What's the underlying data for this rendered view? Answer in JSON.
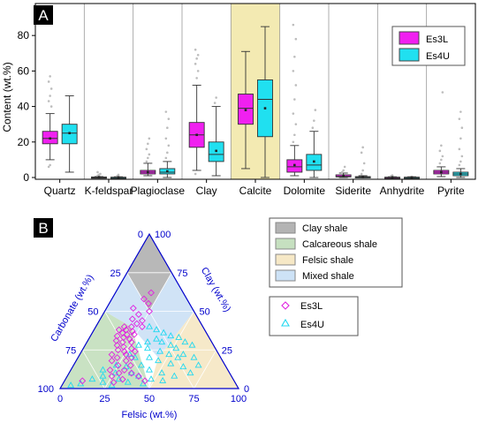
{
  "chart_data": [
    {
      "panel_label": "A",
      "type": "box",
      "ylabel": "Content (wt.%)",
      "ylim": [
        -1,
        98
      ],
      "yticks": [
        0,
        20,
        40,
        60,
        80
      ],
      "categories": [
        "Quartz",
        "K-feldspar",
        "Plagioclase",
        "Clay",
        "Calcite",
        "Dolomite",
        "Siderite",
        "Anhydrite",
        "Pyrite"
      ],
      "highlight_category": "Calcite",
      "legend": {
        "position": "top-right",
        "entries": [
          "Es3L",
          "Es4U"
        ]
      },
      "series": [
        {
          "name": "Es3L",
          "color": "#f020f0",
          "boxes": [
            {
              "category": "Quartz",
              "whisker_low": 10,
              "q1": 19,
              "median": 22,
              "q3": 26,
              "whisker_high": 36,
              "mean": 22,
              "outliers": [
                6,
                7,
                40,
                43,
                46,
                50,
                54,
                57
              ]
            },
            {
              "category": "K-feldspar",
              "whisker_low": 0,
              "q1": 0,
              "median": 0,
              "q3": 0.3,
              "whisker_high": 0.5,
              "mean": 0.2,
              "outliers": [
                1,
                1.5,
                2,
                3
              ]
            },
            {
              "category": "Plagioclase",
              "whisker_low": 1,
              "q1": 2,
              "median": 3,
              "q3": 4,
              "whisker_high": 8,
              "mean": 3,
              "outliers": [
                9,
                11,
                13,
                16,
                19,
                22
              ]
            },
            {
              "category": "Clay",
              "whisker_low": 4,
              "q1": 17,
              "median": 24,
              "q3": 31,
              "whisker_high": 52,
              "mean": 24,
              "outliers": [
                2,
                56,
                60,
                64,
                67,
                69,
                72
              ]
            },
            {
              "category": "Calcite",
              "whisker_low": 5,
              "q1": 30,
              "median": 39,
              "q3": 47,
              "whisker_high": 71,
              "mean": 38,
              "outliers": []
            },
            {
              "category": "Dolomite",
              "whisker_low": 1,
              "q1": 3,
              "median": 6,
              "q3": 10,
              "whisker_high": 18,
              "mean": 7,
              "outliers": [
                20,
                24,
                30,
                36,
                44,
                52,
                60,
                68,
                78,
                86
              ]
            },
            {
              "category": "Siderite",
              "whisker_low": 0,
              "q1": 0.3,
              "median": 0.6,
              "q3": 1.5,
              "whisker_high": 2.5,
              "mean": 1,
              "outliers": [
                3,
                4,
                6
              ]
            },
            {
              "category": "Anhydrite",
              "whisker_low": 0,
              "q1": 0,
              "median": 0,
              "q3": 0.2,
              "whisker_high": 0.4,
              "mean": 0.1,
              "outliers": [
                0.8,
                1.2
              ]
            },
            {
              "category": "Pyrite",
              "whisker_low": 0.5,
              "q1": 2,
              "median": 3,
              "q3": 4,
              "whisker_high": 6,
              "mean": 3,
              "outliers": [
                8,
                10,
                12,
                15,
                18,
                48
              ]
            }
          ]
        },
        {
          "name": "Es4U",
          "color": "#20e0f0",
          "boxes": [
            {
              "category": "Quartz",
              "whisker_low": 3,
              "q1": 19,
              "median": 25,
              "q3": 30,
              "whisker_high": 46,
              "mean": 25,
              "outliers": []
            },
            {
              "category": "K-feldspar",
              "whisker_low": 0,
              "q1": 0,
              "median": 0,
              "q3": 0.2,
              "whisker_high": 0.4,
              "mean": 0.1,
              "outliers": [
                0.8,
                1.5
              ]
            },
            {
              "category": "Plagioclase",
              "whisker_low": 0,
              "q1": 2,
              "median": 3,
              "q3": 5,
              "whisker_high": 9,
              "mean": 3.5,
              "outliers": [
                11,
                14,
                18,
                22,
                28,
                33,
                37
              ]
            },
            {
              "category": "Clay",
              "whisker_low": 1,
              "q1": 9,
              "median": 13,
              "q3": 20,
              "whisker_high": 40,
              "mean": 15,
              "outliers": [
                42,
                45
              ]
            },
            {
              "category": "Calcite",
              "whisker_low": 0,
              "q1": 23,
              "median": 44,
              "q3": 55,
              "whisker_high": 85,
              "mean": 39,
              "outliers": []
            },
            {
              "category": "Dolomite",
              "whisker_low": 0,
              "q1": 4,
              "median": 7,
              "q3": 13,
              "whisker_high": 26,
              "mean": 9,
              "outliers": [
                28,
                32,
                38
              ]
            },
            {
              "category": "Siderite",
              "whisker_low": 0,
              "q1": 0,
              "median": 0.2,
              "q3": 0.5,
              "whisker_high": 1,
              "mean": 0.3,
              "outliers": [
                2,
                4,
                8,
                14,
                17
              ]
            },
            {
              "category": "Anhydrite",
              "whisker_low": 0,
              "q1": 0,
              "median": 0,
              "q3": 0.2,
              "whisker_high": 0.4,
              "mean": 0.1,
              "outliers": []
            },
            {
              "category": "Pyrite",
              "whisker_low": 0,
              "q1": 1,
              "median": 2,
              "q3": 3,
              "whisker_high": 5,
              "mean": 2,
              "outliers": [
                7,
                9,
                12,
                16,
                22,
                28,
                33,
                37
              ]
            }
          ]
        }
      ]
    },
    {
      "panel_label": "B",
      "type": "ternary",
      "axes": {
        "left": "Carbonate (wt.%)",
        "right": "Clay (wt.%)",
        "bottom": "Felsic (wt.%)"
      },
      "ticks": [
        0,
        25,
        50,
        75,
        100
      ],
      "regions": [
        {
          "name": "Clay shale",
          "color": "#b4b4b4"
        },
        {
          "name": "Calcareous shale",
          "color": "#c6e0c0"
        },
        {
          "name": "Felsic shale",
          "color": "#f6e8c6"
        },
        {
          "name": "Mixed shale",
          "color": "#cde2f6"
        }
      ],
      "legend": {
        "position": "right",
        "entries": [
          "Es3L",
          "Es4U"
        ]
      },
      "series": [
        {
          "name": "Es3L",
          "marker": "diamond",
          "color": "#e020e0",
          "points": [
            {
              "felsic": 20,
              "clay": 62,
              "carbonate": 18
            },
            {
              "felsic": 18,
              "clay": 58,
              "carbonate": 24
            },
            {
              "felsic": 22,
              "clay": 55,
              "carbonate": 23
            },
            {
              "felsic": 15,
              "clay": 52,
              "carbonate": 33
            },
            {
              "felsic": 25,
              "clay": 50,
              "carbonate": 25
            },
            {
              "felsic": 20,
              "clay": 48,
              "carbonate": 32
            },
            {
              "felsic": 18,
              "clay": 45,
              "carbonate": 37
            },
            {
              "felsic": 24,
              "clay": 44,
              "carbonate": 32
            },
            {
              "felsic": 22,
              "clay": 42,
              "carbonate": 36
            },
            {
              "felsic": 16,
              "clay": 40,
              "carbonate": 44
            },
            {
              "felsic": 20,
              "clay": 40,
              "carbonate": 40
            },
            {
              "felsic": 26,
              "clay": 40,
              "carbonate": 34
            },
            {
              "felsic": 14,
              "clay": 38,
              "carbonate": 48
            },
            {
              "felsic": 18,
              "clay": 38,
              "carbonate": 44
            },
            {
              "felsic": 22,
              "clay": 37,
              "carbonate": 41
            },
            {
              "felsic": 17,
              "clay": 36,
              "carbonate": 47
            },
            {
              "felsic": 20,
              "clay": 35,
              "carbonate": 45
            },
            {
              "felsic": 24,
              "clay": 35,
              "carbonate": 41
            },
            {
              "felsic": 15,
              "clay": 34,
              "carbonate": 51
            },
            {
              "felsic": 19,
              "clay": 33,
              "carbonate": 48
            },
            {
              "felsic": 23,
              "clay": 32,
              "carbonate": 45
            },
            {
              "felsic": 16,
              "clay": 31,
              "carbonate": 53
            },
            {
              "felsic": 20,
              "clay": 30,
              "carbonate": 50
            },
            {
              "felsic": 25,
              "clay": 30,
              "carbonate": 45
            },
            {
              "felsic": 18,
              "clay": 28,
              "carbonate": 54
            },
            {
              "felsic": 22,
              "clay": 27,
              "carbonate": 51
            },
            {
              "felsic": 27,
              "clay": 26,
              "carbonate": 47
            },
            {
              "felsic": 20,
              "clay": 25,
              "carbonate": 55
            },
            {
              "felsic": 24,
              "clay": 24,
              "carbonate": 52
            },
            {
              "felsic": 30,
              "clay": 24,
              "carbonate": 46
            },
            {
              "felsic": 18,
              "clay": 22,
              "carbonate": 60
            },
            {
              "felsic": 26,
              "clay": 22,
              "carbonate": 52
            },
            {
              "felsic": 22,
              "clay": 20,
              "carbonate": 58
            },
            {
              "felsic": 30,
              "clay": 20,
              "carbonate": 50
            },
            {
              "felsic": 20,
              "clay": 18,
              "carbonate": 62
            },
            {
              "felsic": 28,
              "clay": 18,
              "carbonate": 54
            },
            {
              "felsic": 25,
              "clay": 15,
              "carbonate": 60
            },
            {
              "felsic": 32,
              "clay": 15,
              "carbonate": 53
            },
            {
              "felsic": 22,
              "clay": 12,
              "carbonate": 66
            },
            {
              "felsic": 30,
              "clay": 12,
              "carbonate": 58
            },
            {
              "felsic": 28,
              "clay": 10,
              "carbonate": 62
            },
            {
              "felsic": 35,
              "clay": 10,
              "carbonate": 55
            },
            {
              "felsic": 25,
              "clay": 8,
              "carbonate": 67
            },
            {
              "felsic": 32,
              "clay": 6,
              "carbonate": 62
            },
            {
              "felsic": 40,
              "clay": 8,
              "carbonate": 52
            },
            {
              "felsic": 10,
              "clay": 5,
              "carbonate": 85
            },
            {
              "felsic": 28,
              "clay": 4,
              "carbonate": 68
            },
            {
              "felsic": 45,
              "clay": 5,
              "carbonate": 50
            }
          ]
        },
        {
          "name": "Es4U",
          "marker": "triangle",
          "color": "#20d8f0",
          "points": [
            {
              "felsic": 30,
              "clay": 40,
              "carbonate": 30
            },
            {
              "felsic": 35,
              "clay": 38,
              "carbonate": 27
            },
            {
              "felsic": 40,
              "clay": 36,
              "carbonate": 24
            },
            {
              "felsic": 45,
              "clay": 34,
              "carbonate": 21
            },
            {
              "felsic": 50,
              "clay": 33,
              "carbonate": 17
            },
            {
              "felsic": 55,
              "clay": 30,
              "carbonate": 15
            },
            {
              "felsic": 60,
              "clay": 28,
              "carbonate": 12
            },
            {
              "felsic": 52,
              "clay": 26,
              "carbonate": 22
            },
            {
              "felsic": 48,
              "clay": 28,
              "carbonate": 24
            },
            {
              "felsic": 42,
              "clay": 30,
              "carbonate": 28
            },
            {
              "felsic": 38,
              "clay": 32,
              "carbonate": 30
            },
            {
              "felsic": 34,
              "clay": 30,
              "carbonate": 36
            },
            {
              "felsic": 30,
              "clay": 28,
              "carbonate": 42
            },
            {
              "felsic": 36,
              "clay": 26,
              "carbonate": 38
            },
            {
              "felsic": 44,
              "clay": 24,
              "carbonate": 32
            },
            {
              "felsic": 50,
              "clay": 22,
              "carbonate": 28
            },
            {
              "felsic": 58,
              "clay": 22,
              "carbonate": 20
            },
            {
              "felsic": 65,
              "clay": 20,
              "carbonate": 15
            },
            {
              "felsic": 40,
              "clay": 20,
              "carbonate": 40
            },
            {
              "felsic": 32,
              "clay": 20,
              "carbonate": 48
            },
            {
              "felsic": 28,
              "clay": 22,
              "carbonate": 50
            },
            {
              "felsic": 46,
              "clay": 18,
              "carbonate": 36
            },
            {
              "felsic": 54,
              "clay": 16,
              "carbonate": 30
            },
            {
              "felsic": 62,
              "clay": 14,
              "carbonate": 24
            },
            {
              "felsic": 38,
              "clay": 15,
              "carbonate": 47
            },
            {
              "felsic": 30,
              "clay": 14,
              "carbonate": 56
            },
            {
              "felsic": 24,
              "clay": 15,
              "carbonate": 61
            },
            {
              "felsic": 44,
              "clay": 12,
              "carbonate": 44
            },
            {
              "felsic": 52,
              "clay": 10,
              "carbonate": 38
            },
            {
              "felsic": 35,
              "clay": 10,
              "carbonate": 55
            },
            {
              "felsic": 26,
              "clay": 10,
              "carbonate": 64
            },
            {
              "felsic": 20,
              "clay": 8,
              "carbonate": 72
            },
            {
              "felsic": 40,
              "clay": 8,
              "carbonate": 52
            },
            {
              "felsic": 48,
              "clay": 6,
              "carbonate": 46
            },
            {
              "felsic": 30,
              "clay": 6,
              "carbonate": 64
            },
            {
              "felsic": 15,
              "clay": 6,
              "carbonate": 79
            },
            {
              "felsic": 22,
              "clay": 4,
              "carbonate": 74
            },
            {
              "felsic": 36,
              "clay": 4,
              "carbonate": 60
            },
            {
              "felsic": 45,
              "clay": 3,
              "carbonate": 52
            },
            {
              "felsic": 10,
              "clay": 3,
              "carbonate": 87
            },
            {
              "felsic": 28,
              "clay": 2,
              "carbonate": 70
            },
            {
              "felsic": 55,
              "clay": 5,
              "carbonate": 40
            },
            {
              "felsic": 60,
              "clay": 8,
              "carbonate": 32
            },
            {
              "felsic": 68,
              "clay": 10,
              "carbonate": 22
            },
            {
              "felsic": 70,
              "clay": 15,
              "carbonate": 15
            },
            {
              "felsic": 5,
              "clay": 2,
              "carbonate": 93
            },
            {
              "felsic": 18,
              "clay": 12,
              "carbonate": 70
            },
            {
              "felsic": 56,
              "clay": 20,
              "carbonate": 24
            }
          ]
        }
      ]
    }
  ]
}
